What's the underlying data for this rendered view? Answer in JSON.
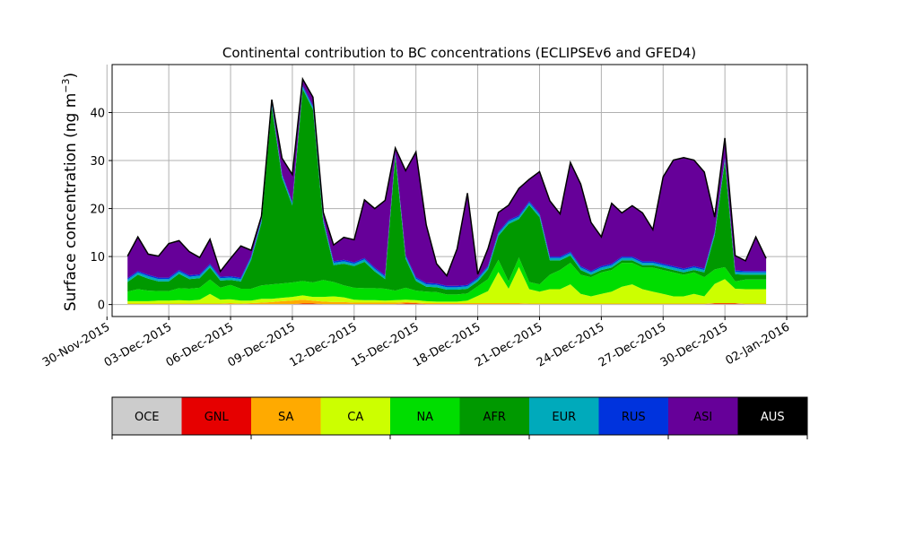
{
  "chart_data": {
    "type": "area",
    "stacked": true,
    "title": "Continental contribution to BC concentrations (ECLIPSEv6 and GFED4)",
    "ylabel_main": "Surface concentration (ng m",
    "ylabel_exp": "−3",
    "ylabel_close": ")",
    "xlabel": "",
    "grid": true,
    "x_axis": {
      "type": "date",
      "xlim": [
        "2015-11-30T06:00",
        "2016-01-03T00:00"
      ],
      "ticks": [
        "2015-11-30",
        "2015-12-03",
        "2015-12-06",
        "2015-12-09",
        "2015-12-12",
        "2015-12-15",
        "2015-12-18",
        "2015-12-21",
        "2015-12-24",
        "2015-12-27",
        "2015-12-30",
        "2016-01-02"
      ],
      "tick_labels": [
        "30-Nov-2015",
        "03-Dec-2015",
        "06-Dec-2015",
        "09-Dec-2015",
        "12-Dec-2015",
        "15-Dec-2015",
        "18-Dec-2015",
        "21-Dec-2015",
        "24-Dec-2015",
        "27-Dec-2015",
        "30-Dec-2015",
        "02-Jan-2016"
      ]
    },
    "y_axis": {
      "ylim": [
        -2.5,
        50
      ],
      "ticks": [
        0,
        10,
        20,
        30,
        40
      ],
      "tick_labels": [
        "0",
        "10",
        "20",
        "30",
        "40"
      ]
    },
    "x": [
      "2015-12-01T00:00",
      "2015-12-01T12:00",
      "2015-12-02T00:00",
      "2015-12-02T12:00",
      "2015-12-03T00:00",
      "2015-12-03T12:00",
      "2015-12-04T00:00",
      "2015-12-04T12:00",
      "2015-12-05T00:00",
      "2015-12-05T12:00",
      "2015-12-06T00:00",
      "2015-12-06T12:00",
      "2015-12-07T00:00",
      "2015-12-07T12:00",
      "2015-12-08T00:00",
      "2015-12-08T12:00",
      "2015-12-09T00:00",
      "2015-12-09T12:00",
      "2015-12-10T00:00",
      "2015-12-10T12:00",
      "2015-12-11T00:00",
      "2015-12-11T12:00",
      "2015-12-12T00:00",
      "2015-12-12T12:00",
      "2015-12-13T00:00",
      "2015-12-13T12:00",
      "2015-12-14T00:00",
      "2015-12-14T12:00",
      "2015-12-15T00:00",
      "2015-12-15T12:00",
      "2015-12-16T00:00",
      "2015-12-16T12:00",
      "2015-12-17T00:00",
      "2015-12-17T12:00",
      "2015-12-18T00:00",
      "2015-12-18T12:00",
      "2015-12-19T00:00",
      "2015-12-19T12:00",
      "2015-12-20T00:00",
      "2015-12-20T12:00",
      "2015-12-21T00:00",
      "2015-12-21T12:00",
      "2015-12-22T00:00",
      "2015-12-22T12:00",
      "2015-12-23T00:00",
      "2015-12-23T12:00",
      "2015-12-24T00:00",
      "2015-12-24T12:00",
      "2015-12-25T00:00",
      "2015-12-25T12:00",
      "2015-12-26T00:00",
      "2015-12-26T12:00",
      "2015-12-27T00:00",
      "2015-12-27T12:00",
      "2015-12-28T00:00",
      "2015-12-28T12:00",
      "2015-12-29T00:00",
      "2015-12-29T12:00",
      "2015-12-30T00:00",
      "2015-12-30T12:00",
      "2015-12-31T00:00",
      "2015-12-31T12:00",
      "2016-01-01T00:00"
    ],
    "series": [
      {
        "name": "OCE",
        "color": "#cccccc",
        "values": [
          0.1,
          0.1,
          0.1,
          0.1,
          0.1,
          0.1,
          0.1,
          0.1,
          0.1,
          0.1,
          0.1,
          0.1,
          0.1,
          0.1,
          0.1,
          0.1,
          0.1,
          0.1,
          0.1,
          0.1,
          0.1,
          0.1,
          0.1,
          0.1,
          0.1,
          0.1,
          0.1,
          0.1,
          0.1,
          0.1,
          0.1,
          0.1,
          0.1,
          0.1,
          0.1,
          0.1,
          0.1,
          0.1,
          0.1,
          0.1,
          0.1,
          0.1,
          0.1,
          0.1,
          0.1,
          0.1,
          0.1,
          0.1,
          0.1,
          0.1,
          0.1,
          0.1,
          0.1,
          0.1,
          0.1,
          0.1,
          0.1,
          0.1,
          0.1,
          0.1,
          0.1,
          0.1,
          0.1
        ]
      },
      {
        "name": "GNL",
        "color": "#e60000",
        "values": [
          0,
          0,
          0,
          0,
          0,
          0,
          0,
          0,
          0,
          0,
          0,
          0,
          0,
          0,
          0,
          0,
          0,
          0.1,
          0.1,
          0,
          0,
          0,
          0,
          0,
          0,
          0,
          0,
          0.1,
          0.1,
          0,
          0,
          0,
          0,
          0,
          0,
          0,
          0,
          0,
          0,
          0,
          0,
          0,
          0,
          0,
          0,
          0,
          0,
          0,
          0,
          0,
          0,
          0,
          0,
          0,
          0,
          0,
          0,
          0.1,
          0.1,
          0.1,
          0,
          0,
          0
        ]
      },
      {
        "name": "SA",
        "color": "#ffaa00",
        "values": [
          0.1,
          0.1,
          0.1,
          0.1,
          0.1,
          0.1,
          0.1,
          0.1,
          0.1,
          0.1,
          0.2,
          0.1,
          0.2,
          0.3,
          0.4,
          0.6,
          0.7,
          0.8,
          0.6,
          0.5,
          0.4,
          0.4,
          0.3,
          0.3,
          0.3,
          0.3,
          0.3,
          0.3,
          0.2,
          0.2,
          0.2,
          0.2,
          0.2,
          0.2,
          0.2,
          0.2,
          0.2,
          0.2,
          0.2,
          0.1,
          0.1,
          0.1,
          0.1,
          0.1,
          0.1,
          0.1,
          0.1,
          0.1,
          0.1,
          0.1,
          0.1,
          0.1,
          0.1,
          0.1,
          0.1,
          0.1,
          0.1,
          0.1,
          0.1,
          0.1,
          0.1,
          0.1,
          0.1
        ]
      },
      {
        "name": "CA",
        "color": "#ccff00",
        "values": [
          0.5,
          0.5,
          0.5,
          0.6,
          0.6,
          0.7,
          0.6,
          0.8,
          2.0,
          0.8,
          0.8,
          0.6,
          0.5,
          0.8,
          0.7,
          0.7,
          0.8,
          0.9,
          0.8,
          1.0,
          1.2,
          1.0,
          0.6,
          0.5,
          0.5,
          0.4,
          0.5,
          0.5,
          0.5,
          0.4,
          0.3,
          0.3,
          0.3,
          0.5,
          1.5,
          2.5,
          6.5,
          3.0,
          7.5,
          3.0,
          2.5,
          3.0,
          3.0,
          4.0,
          2.0,
          1.5,
          2.0,
          2.5,
          3.5,
          4.0,
          3.0,
          2.5,
          2.0,
          1.5,
          1.5,
          2.0,
          1.5,
          4.0,
          5.0,
          3.0,
          3.0,
          3.0,
          3.0
        ]
      },
      {
        "name": "NA",
        "color": "#00dd00",
        "values": [
          2.0,
          2.5,
          2.2,
          2.0,
          2.0,
          2.5,
          2.5,
          2.5,
          3.0,
          2.5,
          3.0,
          2.5,
          2.5,
          2.8,
          3.0,
          3.0,
          3.0,
          3.0,
          3.0,
          3.5,
          3.0,
          2.5,
          2.5,
          2.5,
          2.5,
          2.5,
          2.0,
          2.5,
          2.0,
          2.0,
          2.0,
          1.5,
          1.5,
          1.5,
          2.0,
          2.5,
          2.5,
          1.5,
          2.0,
          1.5,
          1.5,
          3.0,
          4.0,
          4.5,
          4.0,
          4.0,
          4.5,
          4.5,
          5.0,
          4.5,
          4.5,
          5.0,
          5.0,
          5.0,
          4.5,
          4.5,
          4.0,
          3.0,
          2.5,
          1.5,
          2.0,
          2.0,
          2.0
        ]
      },
      {
        "name": "AFR",
        "color": "#009900",
        "values": [
          2.0,
          3.0,
          2.5,
          2.0,
          2.0,
          3.0,
          2.0,
          2.0,
          2.5,
          1.5,
          1.0,
          1.5,
          6.0,
          13.0,
          37.0,
          22.0,
          16.0,
          40.0,
          36.0,
          12.0,
          3.5,
          4.5,
          4.5,
          5.5,
          3.5,
          2.0,
          28.0,
          6.0,
          2.0,
          1.0,
          1.0,
          1.0,
          1.0,
          1.0,
          1.0,
          2.0,
          5.0,
          12.0,
          8.0,
          16.0,
          14.0,
          3.0,
          2.0,
          1.5,
          1.0,
          0.5,
          0.5,
          0.5,
          0.5,
          0.5,
          0.5,
          0.5,
          0.5,
          0.5,
          0.5,
          0.5,
          1.0,
          7.0,
          22.0,
          1.5,
          1.0,
          1.0,
          1.0
        ]
      },
      {
        "name": "EUR",
        "color": "#00aabb",
        "values": [
          0.5,
          0.5,
          0.5,
          0.5,
          0.5,
          0.5,
          0.5,
          0.5,
          0.5,
          0.5,
          0.5,
          0.5,
          0.5,
          0.5,
          0.5,
          0.5,
          0.5,
          0.5,
          0.5,
          0.5,
          0.5,
          0.5,
          0.5,
          0.5,
          0.5,
          0.5,
          0.5,
          0.5,
          0.5,
          0.5,
          0.5,
          0.5,
          0.5,
          0.5,
          0.5,
          0.5,
          0.5,
          0.5,
          0.5,
          0.5,
          0.5,
          0.5,
          0.5,
          0.5,
          0.5,
          0.5,
          0.5,
          0.5,
          0.5,
          0.5,
          0.5,
          0.5,
          0.5,
          0.5,
          0.5,
          0.5,
          0.5,
          0.5,
          0.5,
          0.5,
          0.5,
          0.5,
          0.5
        ]
      },
      {
        "name": "RUS",
        "color": "#0033dd",
        "values": [
          0.3,
          0.3,
          0.3,
          0.3,
          0.3,
          0.3,
          0.3,
          0.3,
          0.3,
          0.3,
          0.3,
          0.3,
          0.3,
          0.3,
          0.3,
          0.3,
          0.3,
          0.3,
          0.3,
          0.3,
          0.3,
          0.3,
          0.3,
          0.3,
          0.3,
          0.3,
          0.3,
          0.3,
          0.3,
          0.3,
          0.3,
          0.3,
          0.3,
          0.3,
          0.3,
          0.3,
          0.3,
          0.3,
          0.3,
          0.3,
          0.3,
          0.3,
          0.3,
          0.3,
          0.3,
          0.3,
          0.3,
          0.3,
          0.3,
          0.3,
          0.3,
          0.3,
          0.3,
          0.3,
          0.3,
          0.3,
          0.3,
          0.3,
          0.3,
          0.3,
          0.3,
          0.3,
          0.3
        ]
      },
      {
        "name": "ASI",
        "color": "#660099",
        "values": [
          4.5,
          7.0,
          4.2,
          4.4,
          7.0,
          6.0,
          4.8,
          3.4,
          5.0,
          1.0,
          3.6,
          6.5,
          1.1,
          0.5,
          0.6,
          3.2,
          5.6,
          1.2,
          1.7,
          1.2,
          3.3,
          4.6,
          4.6,
          12.0,
          12.2,
          15.5,
          0.8,
          17.5,
          26.0,
          12.0,
          4.0,
          2.0,
          7.6,
          19.0,
          0.6,
          3.5,
          4.0,
          3.0,
          5.5,
          4.5,
          8.6,
          11.5,
          8.8,
          18.5,
          17.0,
          10.0,
          6.0,
          12.5,
          9.0,
          10.5,
          10.0,
          6.5,
          18.0,
          22.0,
          23.0,
          22.0,
          20.0,
          3.0,
          4.0,
          3.0,
          2.0,
          7.0,
          2.5
        ]
      },
      {
        "name": "AUS",
        "color": "#000000",
        "values": [
          0.1,
          0.1,
          0.1,
          0.1,
          0.1,
          0.1,
          0.1,
          0.1,
          0.1,
          0.1,
          0.1,
          0.1,
          0.1,
          0.1,
          0.1,
          0.1,
          0.1,
          0.1,
          0.1,
          0.1,
          0.1,
          0.1,
          0.1,
          0.1,
          0.1,
          0.1,
          0.1,
          0.1,
          0.1,
          0.1,
          0.1,
          0.1,
          0.1,
          0.1,
          0.1,
          0.1,
          0.1,
          0.1,
          0.1,
          0.1,
          0.1,
          0.1,
          0.1,
          0.1,
          0.1,
          0.1,
          0.1,
          0.1,
          0.1,
          0.1,
          0.1,
          0.1,
          0.1,
          0.1,
          0.1,
          0.1,
          0.1,
          0.1,
          0.1,
          0.1,
          0.1,
          0.1,
          0.1
        ]
      }
    ],
    "legend": {
      "placement": "bottom",
      "entries": [
        {
          "label": "OCE",
          "color": "#cccccc"
        },
        {
          "label": "GNL",
          "color": "#e60000"
        },
        {
          "label": "SA",
          "color": "#ffaa00"
        },
        {
          "label": "CA",
          "color": "#ccff00"
        },
        {
          "label": "NA",
          "color": "#00dd00"
        },
        {
          "label": "AFR",
          "color": "#009900"
        },
        {
          "label": "EUR",
          "color": "#00aabb"
        },
        {
          "label": "RUS",
          "color": "#0033dd"
        },
        {
          "label": "ASI",
          "color": "#660099"
        },
        {
          "label": "AUS",
          "color": "#000000"
        }
      ]
    }
  }
}
